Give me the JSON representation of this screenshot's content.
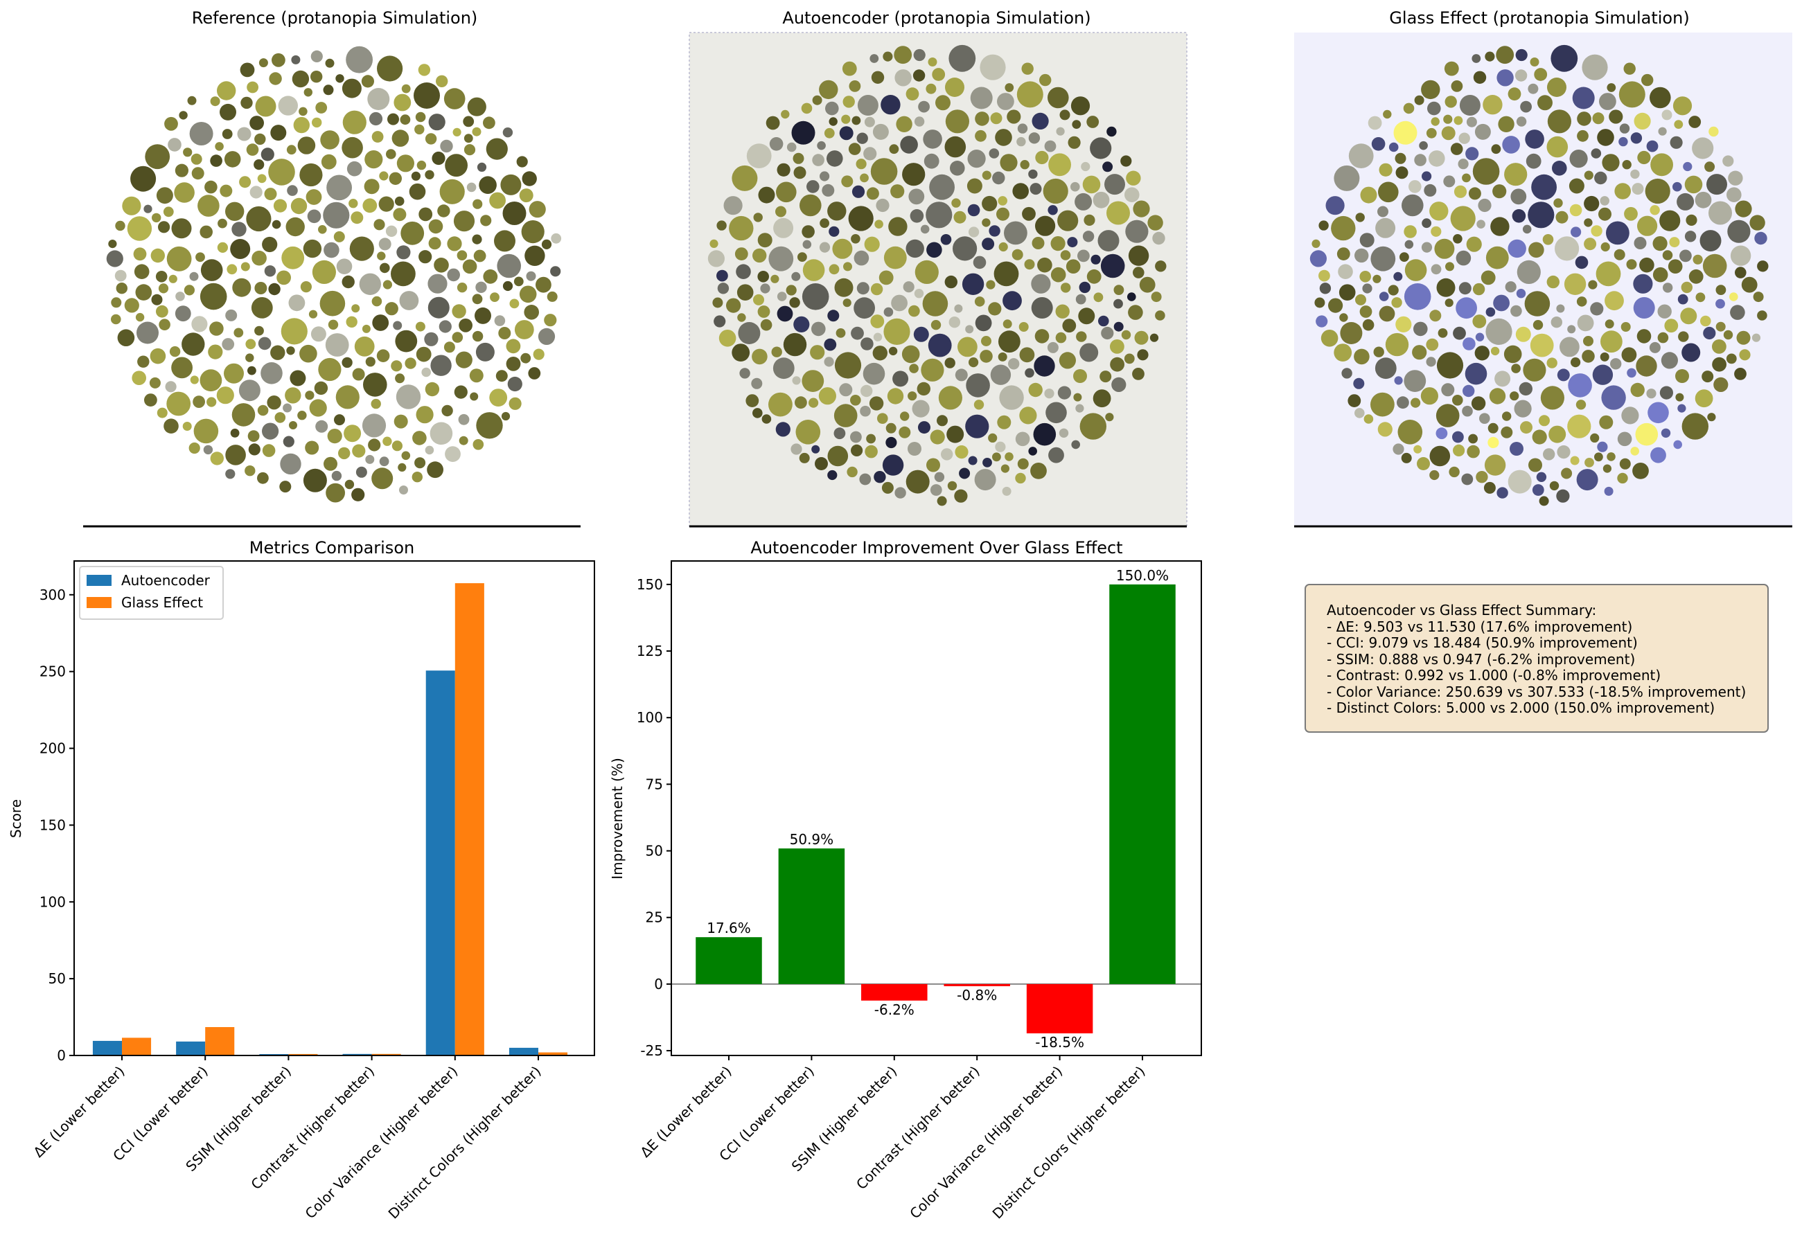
{
  "panels": [
    {
      "title": "Reference (protanopia Simulation)"
    },
    {
      "title": "Autoencoder (protanopia Simulation)"
    },
    {
      "title": "Glass Effect (protanopia Simulation)"
    }
  ],
  "colors": {
    "autoencoder": "#1f77b4",
    "glass_effect": "#ff7f0e",
    "positive": "#008000",
    "negative": "#ff0000",
    "summary_bg": "#f5e6cd",
    "plate_olive": "#8b8a3c",
    "plate_gray": "#9a9a8e",
    "plate_navy": "#2b2e4f",
    "plate_lavender": "#5a5f9c",
    "plate_yellow": "#c8c35a"
  },
  "chart_data": [
    {
      "type": "bar",
      "title": "Metrics Comparison",
      "xlabel": "",
      "ylabel": "Score",
      "categories": [
        "ΔE (Lower better)",
        "CCI (Lower better)",
        "SSIM (Higher better)",
        "Contrast (Higher better)",
        "Color Variance (Higher better)",
        "Distinct Colors (Higher better)"
      ],
      "series": [
        {
          "name": "Autoencoder",
          "values": [
            9.503,
            9.079,
            0.888,
            0.992,
            250.639,
            5.0
          ]
        },
        {
          "name": "Glass Effect",
          "values": [
            11.53,
            18.484,
            0.947,
            1.0,
            307.533,
            2.0
          ]
        }
      ],
      "ylim": [
        0,
        322
      ],
      "yticks": [
        0,
        50,
        100,
        150,
        200,
        250,
        300
      ],
      "legend": "top-left",
      "grid": false
    },
    {
      "type": "bar",
      "title": "Autoencoder Improvement Over Glass Effect",
      "xlabel": "",
      "ylabel": "Improvement (%)",
      "categories": [
        "ΔE (Lower better)",
        "CCI (Lower better)",
        "SSIM (Higher better)",
        "Contrast (Higher better)",
        "Color Variance (Higher better)",
        "Distinct Colors (Higher better)"
      ],
      "values": [
        17.6,
        50.9,
        -6.2,
        -0.8,
        -18.5,
        150.0
      ],
      "data_labels": [
        "17.6%",
        "50.9%",
        "-6.2%",
        "-0.8%",
        "-18.5%",
        "150.0%"
      ],
      "ylim": [
        -26.8,
        158.8
      ],
      "yticks": [
        -25,
        0,
        25,
        50,
        75,
        100,
        125,
        150
      ],
      "baseline": 0,
      "grid": false
    }
  ],
  "summary": {
    "heading": "Autoencoder vs Glass Effect Summary:",
    "lines": [
      "- ΔE: 9.503 vs 11.530 (17.6% improvement)",
      "- CCI: 9.079 vs 18.484 (50.9% improvement)",
      "- SSIM: 0.888 vs 0.947 (-6.2% improvement)",
      "- Contrast: 0.992 vs 1.000 (-0.8% improvement)",
      "- Color Variance: 250.639 vs 307.533 (-18.5% improvement)",
      "- Distinct Colors: 5.000 vs 2.000 (150.0% improvement)"
    ]
  }
}
